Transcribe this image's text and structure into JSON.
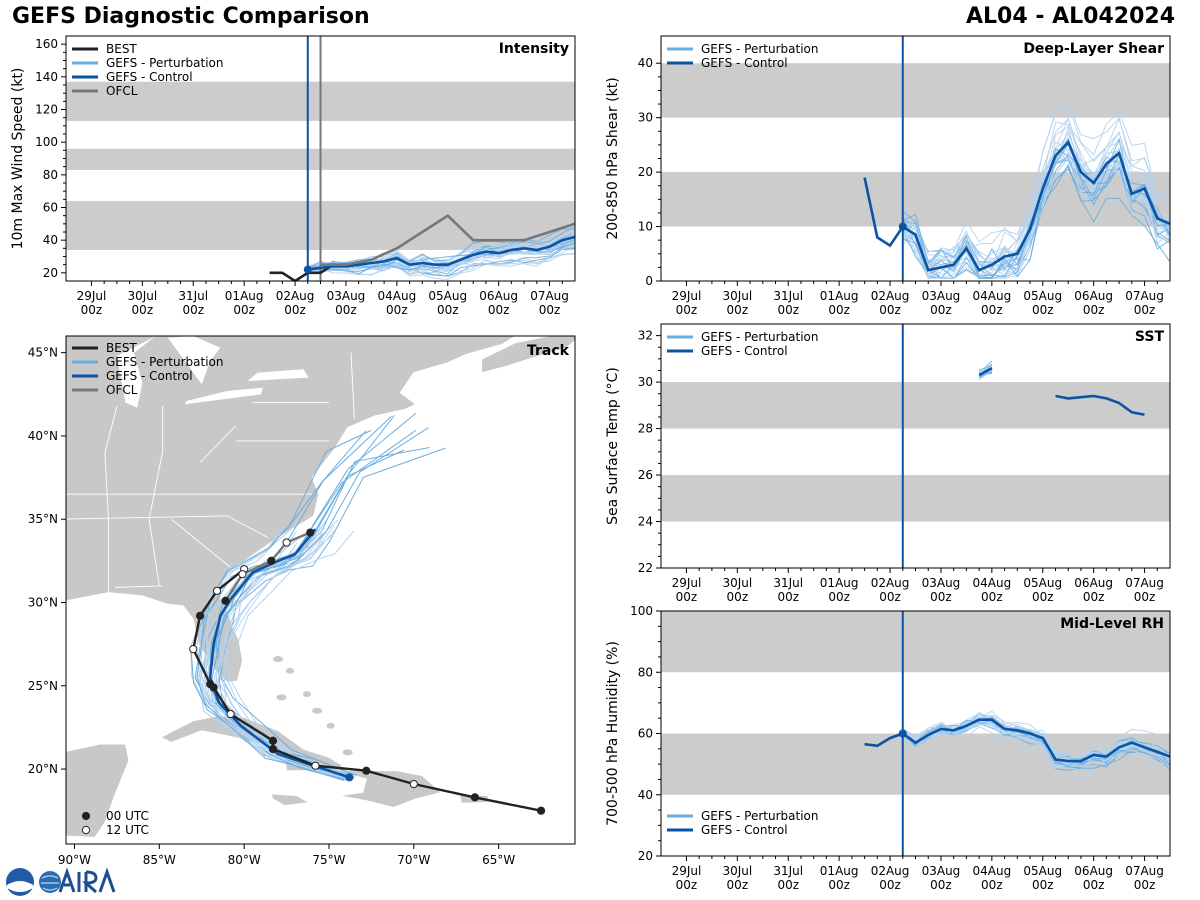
{
  "header": {
    "title": "GEFS Diagnostic Comparison",
    "storm_id": "AL04 - AL042024"
  },
  "colors": {
    "best": "#222222",
    "perturbation": "#6aaee0",
    "control": "#0b53a4",
    "ofcl": "#777777",
    "band": "#cccccc",
    "land": "#c8c8c8"
  },
  "date_ticks": [
    {
      "day": 0,
      "line1": "29Jul",
      "line2": "00z"
    },
    {
      "day": 1,
      "line1": "30Jul",
      "line2": "00z"
    },
    {
      "day": 2,
      "line1": "31Jul",
      "line2": "00z"
    },
    {
      "day": 3,
      "line1": "01Aug",
      "line2": "00z"
    },
    {
      "day": 4,
      "line1": "02Aug",
      "line2": "00z"
    },
    {
      "day": 5,
      "line1": "03Aug",
      "line2": "00z"
    },
    {
      "day": 6,
      "line1": "04Aug",
      "line2": "00z"
    },
    {
      "day": 7,
      "line1": "05Aug",
      "line2": "00z"
    },
    {
      "day": 8,
      "line1": "06Aug",
      "line2": "00z"
    },
    {
      "day": 9,
      "line1": "07Aug",
      "line2": "00z"
    }
  ],
  "chart_data": [
    {
      "id": "intensity",
      "type": "line",
      "title": "Intensity",
      "ylabel": "10m Max Wind Speed (kt)",
      "xlim": [
        -0.5,
        9.5
      ],
      "ylim": [
        15,
        165
      ],
      "yticks": [
        20,
        40,
        60,
        80,
        100,
        120,
        140,
        160
      ],
      "bands": [
        [
          34,
          64
        ],
        [
          83,
          96
        ],
        [
          113,
          137
        ]
      ],
      "init_day": 4.25,
      "ofcl_init_day": 4.5,
      "legend": [
        "BEST",
        "GEFS - Perturbation",
        "GEFS - Control",
        "OFCL"
      ],
      "series": [
        {
          "name": "BEST",
          "x": [
            3.5,
            3.75,
            4,
            4.25,
            4.5,
            4.75,
            5,
            5.25
          ],
          "values": [
            20,
            20,
            15,
            20,
            20,
            25,
            25,
            25
          ]
        },
        {
          "name": "GEFS - Control",
          "x": [
            4.25,
            4.5,
            4.75,
            5,
            5.25,
            5.5,
            5.75,
            6,
            6.25,
            6.5,
            6.75,
            7,
            7.25,
            7.5,
            7.75,
            8,
            8.25,
            8.5,
            8.75,
            9,
            9.25,
            9.5
          ],
          "values": [
            22,
            23,
            24,
            24,
            25,
            26,
            27,
            29,
            25,
            26,
            25,
            25,
            28,
            31,
            33,
            32,
            34,
            35,
            34,
            36,
            40,
            42
          ]
        },
        {
          "name": "OFCL",
          "x": [
            4.5,
            5,
            5.5,
            6,
            6.5,
            7,
            7.5,
            8,
            8.5,
            9,
            9.5
          ],
          "values": [
            25,
            25,
            28,
            35,
            45,
            55,
            40,
            40,
            40,
            45,
            50
          ]
        }
      ],
      "perturbations_count": 30,
      "perturbation_range_end": [
        10,
        70
      ]
    },
    {
      "id": "track",
      "type": "scatter",
      "title": "Track",
      "xlim": [
        -90.5,
        -60.5
      ],
      "ylim": [
        15.5,
        46
      ],
      "xticks": [
        -90,
        -85,
        -80,
        -75,
        -70,
        -65
      ],
      "yticks": [
        20,
        25,
        30,
        35,
        40,
        45
      ],
      "xtick_labels": [
        "90°W",
        "85°W",
        "80°W",
        "75°W",
        "70°W",
        "65°W"
      ],
      "ytick_labels": [
        "20°N",
        "25°N",
        "30°N",
        "35°N",
        "40°N",
        "45°N"
      ],
      "legend": [
        "BEST",
        "GEFS - Perturbation",
        "GEFS - Control",
        "OFCL"
      ],
      "marker_legend": [
        "00 UTC",
        "12 UTC"
      ],
      "best_track": [
        {
          "lon": -62.5,
          "lat": 17.5,
          "utc": "00"
        },
        {
          "lon": -66.4,
          "lat": 18.3,
          "utc": "00"
        },
        {
          "lon": -70.0,
          "lat": 19.1,
          "utc": "12"
        },
        {
          "lon": -72.8,
          "lat": 19.9,
          "utc": "00"
        },
        {
          "lon": -75.8,
          "lat": 20.2,
          "utc": "12"
        },
        {
          "lon": -78.3,
          "lat": 21.2,
          "utc": "00"
        },
        {
          "lon": -78.3,
          "lat": 21.7,
          "utc": "00"
        },
        {
          "lon": -80.8,
          "lat": 23.3,
          "utc": "12"
        },
        {
          "lon": -81.8,
          "lat": 24.9,
          "utc": "00"
        },
        {
          "lon": -82.0,
          "lat": 25.1,
          "utc": "00"
        },
        {
          "lon": -83.0,
          "lat": 27.2,
          "utc": "12"
        },
        {
          "lon": -82.6,
          "lat": 29.2,
          "utc": "00"
        },
        {
          "lon": -81.6,
          "lat": 30.7,
          "utc": "12"
        },
        {
          "lon": -80.0,
          "lat": 32.0,
          "utc": "12"
        }
      ],
      "control_track": [
        {
          "lon": -73.8,
          "lat": 19.5
        },
        {
          "lon": -76.2,
          "lat": 20.3
        },
        {
          "lon": -78.0,
          "lat": 20.9
        },
        {
          "lon": -80.2,
          "lat": 22.6
        },
        {
          "lon": -81.5,
          "lat": 24.0
        },
        {
          "lon": -82.0,
          "lat": 25.5
        },
        {
          "lon": -81.8,
          "lat": 27.5
        },
        {
          "lon": -81.4,
          "lat": 29.2
        },
        {
          "lon": -80.8,
          "lat": 30.2
        },
        {
          "lon": -79.5,
          "lat": 31.8
        },
        {
          "lon": -78.0,
          "lat": 32.5
        },
        {
          "lon": -77.0,
          "lat": 32.9
        },
        {
          "lon": -75.8,
          "lat": 34.4
        }
      ],
      "ofcl_track": [
        {
          "lon": -81.1,
          "lat": 30.1,
          "utc": "00"
        },
        {
          "lon": -80.1,
          "lat": 31.7,
          "utc": "12"
        },
        {
          "lon": -78.4,
          "lat": 32.5,
          "utc": "00"
        },
        {
          "lon": -77.5,
          "lat": 33.6,
          "utc": "12"
        },
        {
          "lon": -76.1,
          "lat": 34.2,
          "utc": "00"
        }
      ]
    },
    {
      "id": "shear",
      "type": "line",
      "title": "Deep-Layer Shear",
      "ylabel": "200-850 hPa Shear (kt)",
      "xlim": [
        -0.5,
        9.5
      ],
      "ylim": [
        0,
        45
      ],
      "yticks": [
        0,
        10,
        20,
        30,
        40
      ],
      "bands": [
        [
          10,
          20
        ],
        [
          30,
          40
        ]
      ],
      "init_day": 4.25,
      "legend": [
        "GEFS - Perturbation",
        "GEFS - Control"
      ],
      "series": [
        {
          "name": "GEFS - Control",
          "x": [
            3.5,
            3.75,
            4,
            4.25,
            4.5,
            4.75,
            5,
            5.25,
            5.5,
            5.75,
            6,
            6.25,
            6.5,
            6.75,
            7,
            7.25,
            7.5,
            7.75,
            8,
            8.25,
            8.5,
            8.75,
            9,
            9.25,
            9.5
          ],
          "values": [
            19,
            8,
            6.5,
            10,
            8.5,
            2,
            2.5,
            3,
            6,
            2,
            3,
            4.5,
            5,
            9.5,
            17,
            23,
            25.5,
            20,
            18,
            21.5,
            23.5,
            16,
            17,
            11.5,
            10.5
          ]
        }
      ],
      "perturbations_count": 30
    },
    {
      "id": "sst",
      "type": "line",
      "title": "SST",
      "ylabel": "Sea Surface Temp (°C)",
      "xlim": [
        -0.5,
        9.5
      ],
      "ylim": [
        22,
        32.5
      ],
      "yticks": [
        22,
        24,
        26,
        28,
        30,
        32
      ],
      "bands": [
        [
          24,
          26
        ],
        [
          28,
          30
        ]
      ],
      "init_day": 4.25,
      "legend": [
        "GEFS - Perturbation",
        "GEFS - Control"
      ],
      "series": [
        {
          "name": "GEFS - Control",
          "x": [
            5.75,
            6.0
          ],
          "values": [
            30.3,
            30.6
          ]
        },
        {
          "name": "GEFS - Control (late)",
          "x": [
            7.25,
            7.5,
            7.75,
            8,
            8.25,
            8.5,
            8.75,
            9.0
          ],
          "values": [
            29.4,
            29.3,
            29.35,
            29.4,
            29.3,
            29.1,
            28.7,
            28.6
          ]
        }
      ],
      "perturbations_count": 30
    },
    {
      "id": "rh",
      "type": "line",
      "title": "Mid-Level RH",
      "ylabel": "700-500 hPa Humidity (%)",
      "xlim": [
        -0.5,
        9.5
      ],
      "ylim": [
        20,
        100
      ],
      "yticks": [
        20,
        40,
        60,
        80,
        100
      ],
      "bands": [
        [
          40,
          60
        ],
        [
          80,
          100
        ]
      ],
      "init_day": 4.25,
      "legend": [
        "GEFS - Perturbation",
        "GEFS - Control"
      ],
      "series": [
        {
          "name": "GEFS - Control",
          "x": [
            3.5,
            3.75,
            4,
            4.25,
            4.5,
            4.75,
            5,
            5.25,
            5.5,
            5.75,
            6,
            6.25,
            6.5,
            6.75,
            7,
            7.25,
            7.5,
            7.75,
            8,
            8.25,
            8.5,
            8.75,
            9,
            9.25,
            9.5
          ],
          "values": [
            56.5,
            56,
            58.5,
            60,
            57,
            59.5,
            61.5,
            61,
            62.5,
            64.5,
            64.5,
            61.5,
            61,
            60,
            58.5,
            51.5,
            51,
            51,
            53,
            52.5,
            55.5,
            57,
            55.5,
            54,
            52.5
          ]
        }
      ],
      "perturbations_count": 30
    }
  ]
}
